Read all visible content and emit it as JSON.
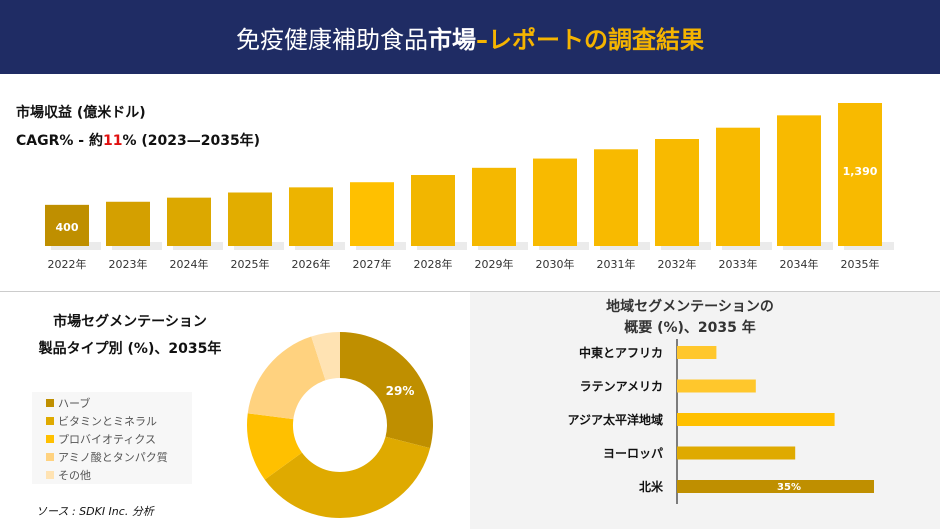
{
  "header": {
    "title_a": "免疫健康補助食品",
    "title_b": "市場",
    "title_c": " –レポートの調査結果"
  },
  "colors": {
    "header_bg": "#1f2c64",
    "accent": "#f5b400",
    "highlight": "#e01010"
  },
  "chart_data": [
    {
      "type": "bar",
      "title": "市場収益 (億米ドル)",
      "subtitle_prefix": "CAGR% - 約",
      "cagr": "11",
      "subtitle_suffix": "% (2023—2035年)",
      "categories": [
        "2022年",
        "2023年",
        "2024年",
        "2025年",
        "2026年",
        "2027年",
        "2028年",
        "2029年",
        "2030年",
        "2031年",
        "2032年",
        "2033年",
        "2034年",
        "2035年"
      ],
      "values": [
        400,
        430,
        470,
        520,
        570,
        620,
        690,
        760,
        850,
        940,
        1040,
        1150,
        1270,
        1390
      ],
      "data_labels": {
        "0": "400",
        "13": "1,390"
      }
    },
    {
      "type": "pie",
      "title_line1": "市場セグメンテーション",
      "title_line2": "製品タイプ別 (%)、2035年",
      "slices": [
        {
          "label": "ハーブ",
          "value": 29,
          "color": "#bf8f00"
        },
        {
          "label": "ビタミンとミネラル",
          "value": 36,
          "color": "#dfaa00"
        },
        {
          "label": "プロバイオティクス",
          "value": 12,
          "color": "#ffc000"
        },
        {
          "label": "アミノ酸とタンパク質",
          "value": 18,
          "color": "#ffd27f"
        },
        {
          "label": "その他",
          "value": 5,
          "color": "#ffe3b3"
        }
      ],
      "data_label": "29%"
    },
    {
      "type": "bar",
      "orientation": "horizontal",
      "title_line1": "地域セグメンテーションの",
      "title_line2": "概要 (%)、2035 年",
      "categories": [
        "中東とアフリカ",
        "ラテンアメリカ",
        "アジア太平洋地域",
        "ヨーロッパ",
        "北米"
      ],
      "values": [
        7,
        14,
        28,
        21,
        35
      ],
      "colors": [
        "#ffc72c",
        "#ffc72c",
        "#ffc000",
        "#dfaa00",
        "#bf8f00"
      ],
      "data_label": "35%"
    }
  ],
  "source": "ソース : SDKI Inc. 分析"
}
